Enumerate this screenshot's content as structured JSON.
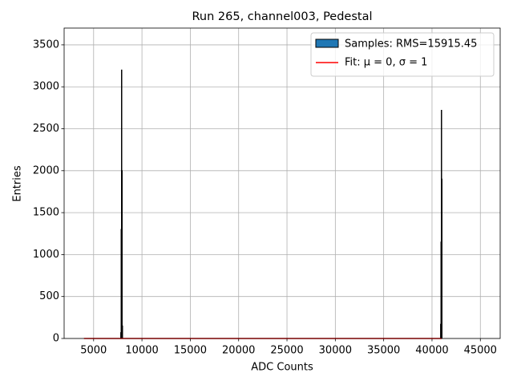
{
  "chart_data": {
    "type": "histogram",
    "title": "Run 265, channel003, Pedestal",
    "xlabel": "ADC Counts",
    "ylabel": "Entries",
    "bins": [
      7800,
      7840,
      7880,
      7920,
      7960,
      8000,
      40880,
      40920,
      40960,
      41000,
      41040
    ],
    "counts": [
      70,
      1300,
      3200,
      2000,
      150,
      0,
      170,
      1150,
      2720,
      1900
    ],
    "hist_label": "Samples: RMS=15915.45",
    "hist_color": "#1f77b4",
    "fit": {
      "name": "Fit: μ = 0, σ = 1",
      "color": "#ff0000",
      "x": [
        4000,
        41000
      ],
      "y": [
        0,
        0
      ]
    },
    "xlim": [
      1950,
      47050
    ],
    "ylim": [
      0,
      3700
    ],
    "xticks": [
      5000,
      10000,
      15000,
      20000,
      25000,
      30000,
      35000,
      40000,
      45000
    ],
    "yticks": [
      0,
      500,
      1000,
      1500,
      2000,
      2500,
      3000,
      3500
    ],
    "grid": true,
    "legend": "upper right"
  }
}
